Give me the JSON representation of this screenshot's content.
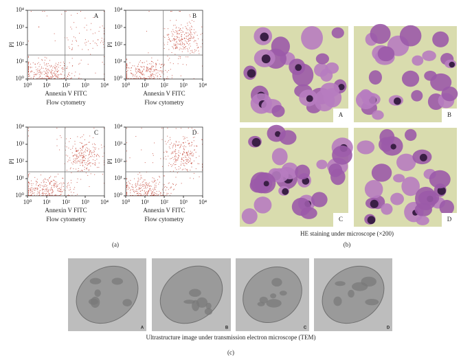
{
  "chart_data": [
    {
      "type": "scatter",
      "label": "A",
      "xlabel": "Annexin V FITC",
      "ylabel": "PI",
      "caption": "Flow cytometry",
      "log": true,
      "color": "#c0392b",
      "xlim": [
        1,
        10000
      ],
      "ylim": [
        1,
        10000
      ],
      "xticks": [
        {
          "value": 1,
          "label": "10⁰"
        },
        {
          "value": 10,
          "label": "10¹"
        },
        {
          "value": 100,
          "label": "10²"
        },
        {
          "value": 1000,
          "label": "10³"
        },
        {
          "value": 10000,
          "label": "10⁴"
        }
      ],
      "yticks": [
        {
          "value": 1,
          "label": "10⁰"
        },
        {
          "value": 10,
          "label": "10¹"
        },
        {
          "value": 100,
          "label": "10²"
        },
        {
          "value": 1000,
          "label": "10³"
        },
        {
          "value": 10000,
          "label": "10⁴"
        }
      ],
      "quadrant": {
        "x": 90,
        "y": 25
      }
    },
    {
      "type": "scatter",
      "label": "B",
      "xlabel": "Annexin V FITC",
      "ylabel": "PI",
      "caption": "Flow cytometry",
      "log": true,
      "color": "#c0392b",
      "xlim": [
        1,
        10000
      ],
      "ylim": [
        1,
        10000
      ],
      "xticks": [
        {
          "value": 1,
          "label": "10⁰"
        },
        {
          "value": 10,
          "label": "10¹"
        },
        {
          "value": 100,
          "label": "10²"
        },
        {
          "value": 1000,
          "label": "10³"
        },
        {
          "value": 10000,
          "label": "10⁴"
        }
      ],
      "yticks": [
        {
          "value": 1,
          "label": "10⁰"
        },
        {
          "value": 10,
          "label": "10¹"
        },
        {
          "value": 100,
          "label": "10²"
        },
        {
          "value": 1000,
          "label": "10³"
        },
        {
          "value": 10000,
          "label": "10⁴"
        }
      ],
      "quadrant": {
        "x": 90,
        "y": 25
      }
    },
    {
      "type": "scatter",
      "label": "C",
      "xlabel": "Annexin V FITC",
      "ylabel": "PI",
      "caption": "Flow cytometry",
      "log": true,
      "color": "#c0392b",
      "xlim": [
        1,
        10000
      ],
      "ylim": [
        1,
        10000
      ],
      "xticks": [
        {
          "value": 1,
          "label": "10⁰"
        },
        {
          "value": 10,
          "label": "10¹"
        },
        {
          "value": 100,
          "label": "10²"
        },
        {
          "value": 1000,
          "label": "10³"
        },
        {
          "value": 10000,
          "label": "10⁴"
        }
      ],
      "yticks": [
        {
          "value": 1,
          "label": "10⁰"
        },
        {
          "value": 10,
          "label": "10¹"
        },
        {
          "value": 100,
          "label": "10²"
        },
        {
          "value": 1000,
          "label": "10³"
        },
        {
          "value": 10000,
          "label": "10⁴"
        }
      ],
      "quadrant": {
        "x": 90,
        "y": 25
      }
    },
    {
      "type": "scatter",
      "label": "D",
      "xlabel": "Annexin V FITC",
      "ylabel": "PI",
      "caption": "Flow cytometry",
      "log": true,
      "color": "#c0392b",
      "xlim": [
        1,
        10000
      ],
      "ylim": [
        1,
        10000
      ],
      "xticks": [
        {
          "value": 1,
          "label": "10⁰"
        },
        {
          "value": 10,
          "label": "10¹"
        },
        {
          "value": 100,
          "label": "10²"
        },
        {
          "value": 1000,
          "label": "10³"
        },
        {
          "value": 10000,
          "label": "10⁴"
        }
      ],
      "yticks": [
        {
          "value": 1,
          "label": "10⁰"
        },
        {
          "value": 10,
          "label": "10¹"
        },
        {
          "value": 100,
          "label": "10²"
        },
        {
          "value": 1000,
          "label": "10³"
        },
        {
          "value": 10000,
          "label": "10⁴"
        }
      ],
      "quadrant": {
        "x": 90,
        "y": 25
      }
    }
  ],
  "figure": {
    "panel_labels": [
      "(a)",
      "(b)",
      "(c)"
    ],
    "he": {
      "labels": [
        "A",
        "B",
        "C",
        "D"
      ],
      "caption": "HE staining under microscope (×200)"
    },
    "tem": {
      "labels": [
        "A",
        "B",
        "C",
        "D"
      ],
      "caption": "Ultrastructure image under transmission electron microscope (TEM)"
    }
  }
}
